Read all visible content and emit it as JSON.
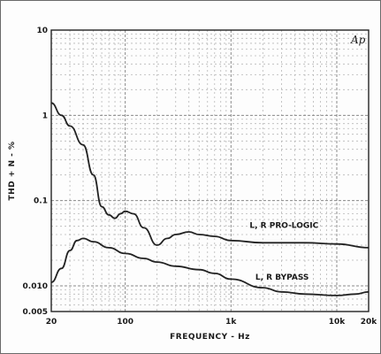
{
  "chart_data": {
    "type": "line",
    "title": "",
    "xlabel": "FREQUENCY - Hz",
    "ylabel": "THD + N - %",
    "x_scale": "log",
    "y_scale": "log",
    "xlim": [
      20,
      20000
    ],
    "ylim": [
      0.005,
      10
    ],
    "x_ticks": [
      {
        "value": 20,
        "label": "20"
      },
      {
        "value": 100,
        "label": "100"
      },
      {
        "value": 1000,
        "label": "1k"
      },
      {
        "value": 10000,
        "label": "10k"
      },
      {
        "value": 20000,
        "label": "20k"
      }
    ],
    "y_ticks": [
      {
        "value": 10,
        "label": "10"
      },
      {
        "value": 1,
        "label": "1"
      },
      {
        "value": 0.1,
        "label": "0.1"
      },
      {
        "value": 0.01,
        "label": "0.010"
      },
      {
        "value": 0.005,
        "label": "0.005"
      }
    ],
    "grid": true,
    "logo": "Ap",
    "series": [
      {
        "name": "L, R PRO-LOGIC",
        "color": "#222222",
        "x": [
          20,
          25,
          30,
          40,
          50,
          60,
          70,
          80,
          90,
          100,
          120,
          150,
          200,
          250,
          300,
          400,
          500,
          700,
          1000,
          2000,
          5000,
          10000,
          20000
        ],
        "y": [
          1.4,
          1.0,
          0.75,
          0.45,
          0.2,
          0.085,
          0.068,
          0.062,
          0.07,
          0.075,
          0.07,
          0.048,
          0.03,
          0.036,
          0.04,
          0.043,
          0.04,
          0.038,
          0.034,
          0.032,
          0.032,
          0.031,
          0.028
        ]
      },
      {
        "name": "L, R BYPASS",
        "color": "#222222",
        "x": [
          20,
          25,
          30,
          35,
          40,
          50,
          70,
          100,
          150,
          200,
          300,
          500,
          700,
          1000,
          2000,
          3000,
          5000,
          10000,
          15000,
          20000
        ],
        "y": [
          0.011,
          0.016,
          0.026,
          0.034,
          0.036,
          0.033,
          0.028,
          0.024,
          0.021,
          0.019,
          0.017,
          0.0155,
          0.014,
          0.012,
          0.0095,
          0.0085,
          0.008,
          0.0077,
          0.008,
          0.0085
        ]
      }
    ],
    "annotations": [
      {
        "text": "L, R PRO-LOGIC",
        "x": 1500,
        "y": 0.048
      },
      {
        "text": "L, R BYPASS",
        "x": 1700,
        "y": 0.0118
      }
    ]
  }
}
